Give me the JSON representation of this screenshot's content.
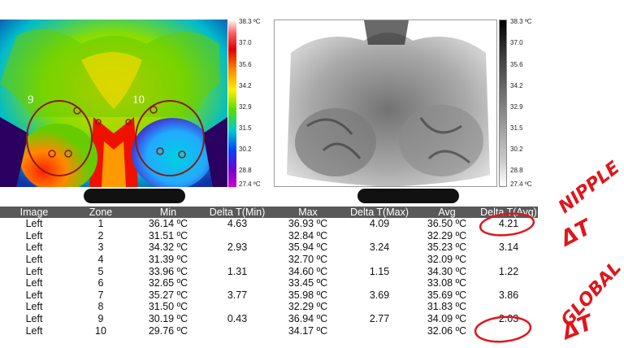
{
  "color_scale": {
    "max": "38.3 ºC",
    "min": "27.4 ºC",
    "ticks": [
      "37.0",
      "35.6",
      "34.2",
      "32.9",
      "31.5",
      "30.2",
      "28.8"
    ]
  },
  "gray_scale": {
    "max": "38.3 ºC",
    "min": "27.4 ºC",
    "ticks": [
      "37.0",
      "35.6",
      "34.2",
      "32.9",
      "31.5",
      "30.2",
      "28.8"
    ]
  },
  "zone_labels": {
    "left": "9",
    "right": "10"
  },
  "table": {
    "headers": [
      "Image",
      "Zone",
      "Min",
      "Delta T(Min)",
      "Max",
      "Delta T(Max)",
      "Avg",
      "Delta T(Avg)"
    ],
    "rows": [
      [
        "Left",
        "1",
        "36.14 ºC",
        "4.63",
        "36.93 ºC",
        "4.09",
        "36.50 ºC",
        "4.21"
      ],
      [
        "Left",
        "2",
        "31.51 ºC",
        "",
        "32.84 ºC",
        "",
        "32.29 ºC",
        ""
      ],
      [
        "Left",
        "3",
        "34.32 ºC",
        "2.93",
        "35.94 ºC",
        "3.24",
        "35.23 ºC",
        "3.14"
      ],
      [
        "Left",
        "4",
        "31.39 ºC",
        "",
        "32.70 ºC",
        "",
        "32.09 ºC",
        ""
      ],
      [
        "Left",
        "5",
        "33.96 ºC",
        "1.31",
        "34.60 ºC",
        "1.15",
        "34.30 ºC",
        "1.22"
      ],
      [
        "Left",
        "6",
        "32.65 ºC",
        "",
        "33.45 ºC",
        "",
        "33.08 ºC",
        ""
      ],
      [
        "Left",
        "7",
        "35.27 ºC",
        "3.77",
        "35.98 ºC",
        "3.69",
        "35.69 ºC",
        "3.86"
      ],
      [
        "Left",
        "8",
        "31.50 ºC",
        "",
        "32.29 ºC",
        "",
        "31.83 ºC",
        ""
      ],
      [
        "Left",
        "9",
        "30.19 ºC",
        "0.43",
        "36.94 ºC",
        "2.77",
        "34.09 ºC",
        "2.03"
      ],
      [
        "Left",
        "10",
        "29.76 ºC",
        "",
        "34.17 ºC",
        "",
        "32.06 ºC",
        ""
      ]
    ]
  },
  "annotations": {
    "nipple_line1": "NIPPLE",
    "nipple_line2": "ΔT",
    "global_line1": "GLOBAL",
    "global_line2": "ΔT"
  },
  "colors": {
    "annotation": "#e0161b",
    "header_bg": "#595959"
  }
}
